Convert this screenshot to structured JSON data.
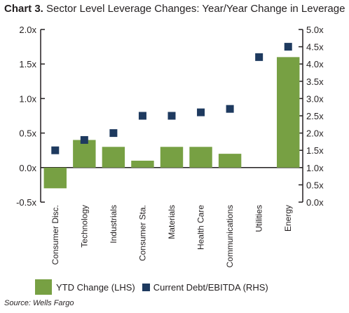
{
  "header": {
    "label": "Chart 3.",
    "title": "Sector Level Leverage Changes: Year/Year Change in Leverage"
  },
  "legend": {
    "bar": "YTD Change (LHS)",
    "dot": "Current Debt/EBITDA (RHS)"
  },
  "source": "Source: Wells Fargo",
  "colors": {
    "bar": "#77a043",
    "dot": "#1e3a5f",
    "axis": "#231f20"
  },
  "chart_data": {
    "type": "bar",
    "title": "Sector Level Leverage Changes: Year/Year Change in Leverage",
    "categories": [
      "Consumer Disc.",
      "Technology",
      "Industrials",
      "Consumer Sta.",
      "Materials",
      "Health Care",
      "Communications",
      "Utilities",
      "Energy"
    ],
    "series": [
      {
        "name": "YTD Change (LHS)",
        "type": "bar",
        "axis": "left",
        "values": [
          -0.3,
          0.4,
          0.3,
          0.1,
          0.3,
          0.3,
          0.2,
          0.0,
          1.6
        ]
      },
      {
        "name": "Current Debt/EBITDA (RHS)",
        "type": "scatter",
        "axis": "right",
        "values": [
          1.5,
          1.8,
          2.0,
          2.5,
          2.5,
          2.6,
          2.7,
          4.2,
          4.5
        ]
      }
    ],
    "y_left": {
      "min": -0.5,
      "max": 2.0,
      "ticks": [
        -0.5,
        0.0,
        0.5,
        1.0,
        1.5,
        2.0
      ],
      "tick_labels": [
        "-0.5x",
        "0.0x",
        "0.5x",
        "1.0x",
        "1.5x",
        "2.0x"
      ]
    },
    "y_right": {
      "min": 0.0,
      "max": 5.0,
      "ticks": [
        0,
        0.5,
        1,
        1.5,
        2,
        2.5,
        3,
        3.5,
        4,
        4.5,
        5
      ],
      "tick_labels": [
        "0.0x",
        "0.5x",
        "1.0x",
        "1.5x",
        "2.0x",
        "2.5x",
        "3.0x",
        "3.5x",
        "4.0x",
        "4.5x",
        "5.0x"
      ]
    },
    "grid": false,
    "legend_position": "bottom"
  }
}
